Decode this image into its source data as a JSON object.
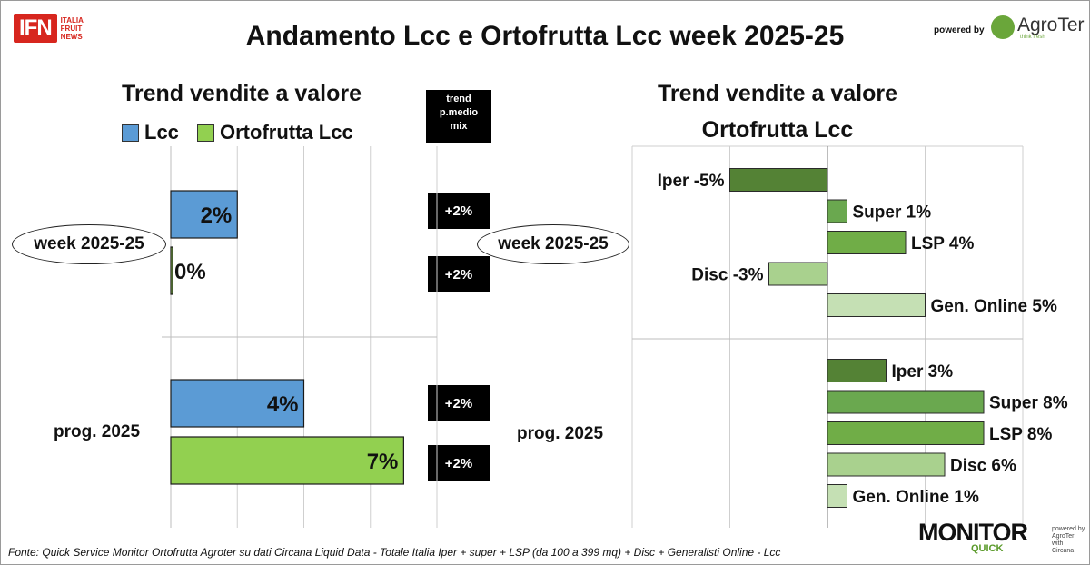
{
  "header": {
    "title": "Andamento Lcc e Ortofrutta Lcc week 2025-25",
    "ifn_logo": "IFN",
    "ifn_lines": [
      "ITALIA",
      "FRUIT",
      "NEWS"
    ],
    "powered_by": "powered by",
    "agroter": "AgroTer",
    "agroter_tag": "think fresh"
  },
  "left_panel": {
    "subtitle": "Trend vendite a valore",
    "trend_header": [
      "trend",
      "p.medio",
      "mix"
    ]
  },
  "right_panel": {
    "subtitle_line1": "Trend vendite a valore",
    "subtitle_line2": "Ortofrutta Lcc"
  },
  "footer": {
    "source": "Fonte: Quick Service Monitor Ortofrutta Agroter su dati Circana Liquid Data - Totale Italia Iper + super + LSP (da 100 a 399 mq) + Disc + Generalisti Online - Lcc",
    "monitor": "MONITOR",
    "quick": "QUICK",
    "small_lines": [
      "powered by",
      "AgroTer",
      "with",
      "Circana"
    ]
  },
  "chart_data": [
    {
      "type": "bar",
      "orientation": "horizontal",
      "title": "Trend vendite a valore",
      "categories": [
        "week 2025-25",
        "prog. 2025"
      ],
      "series": [
        {
          "name": "Lcc",
          "color": "#5b9bd5",
          "values": [
            2,
            4
          ],
          "labels": [
            "2%",
            "4%"
          ]
        },
        {
          "name": "Ortofrutta Lcc",
          "color": "#92d050",
          "values": [
            0,
            7
          ],
          "labels": [
            "0%",
            "7%"
          ]
        }
      ],
      "trend_p_medio_mix": [
        [
          "+2%",
          "+2%"
        ],
        [
          "+2%",
          "+2%"
        ]
      ],
      "xlim": [
        0,
        8
      ],
      "grid": true,
      "legend": "top"
    },
    {
      "type": "bar",
      "orientation": "horizontal",
      "title": "Trend vendite a valore Ortofrutta Lcc",
      "groups": [
        {
          "label": "week 2025-25",
          "bars": [
            {
              "channel": "Iper",
              "value": -5,
              "label": "Iper -5%",
              "color": "#548235"
            },
            {
              "channel": "Super",
              "value": 1,
              "label": "Super 1%",
              "color": "#6aa84f"
            },
            {
              "channel": "LSP",
              "value": 4,
              "label": "LSP 4%",
              "color": "#70ad47"
            },
            {
              "channel": "Disc",
              "value": -3,
              "label": "Disc -3%",
              "color": "#a9d18e"
            },
            {
              "channel": "Gen. Online",
              "value": 5,
              "label": "Gen. Online 5%",
              "color": "#c5e0b4"
            }
          ]
        },
        {
          "label": "prog. 2025",
          "bars": [
            {
              "channel": "Iper",
              "value": 3,
              "label": "Iper 3%",
              "color": "#548235"
            },
            {
              "channel": "Super",
              "value": 8,
              "label": "Super 8%",
              "color": "#6aa84f"
            },
            {
              "channel": "LSP",
              "value": 8,
              "label": "LSP 8%",
              "color": "#70ad47"
            },
            {
              "channel": "Disc",
              "value": 6,
              "label": "Disc 6%",
              "color": "#a9d18e"
            },
            {
              "channel": "Gen. Online",
              "value": 1,
              "label": "Gen. Online 1%",
              "color": "#c5e0b4"
            }
          ]
        }
      ],
      "xlim": [
        -10,
        10
      ],
      "grid": true
    }
  ]
}
